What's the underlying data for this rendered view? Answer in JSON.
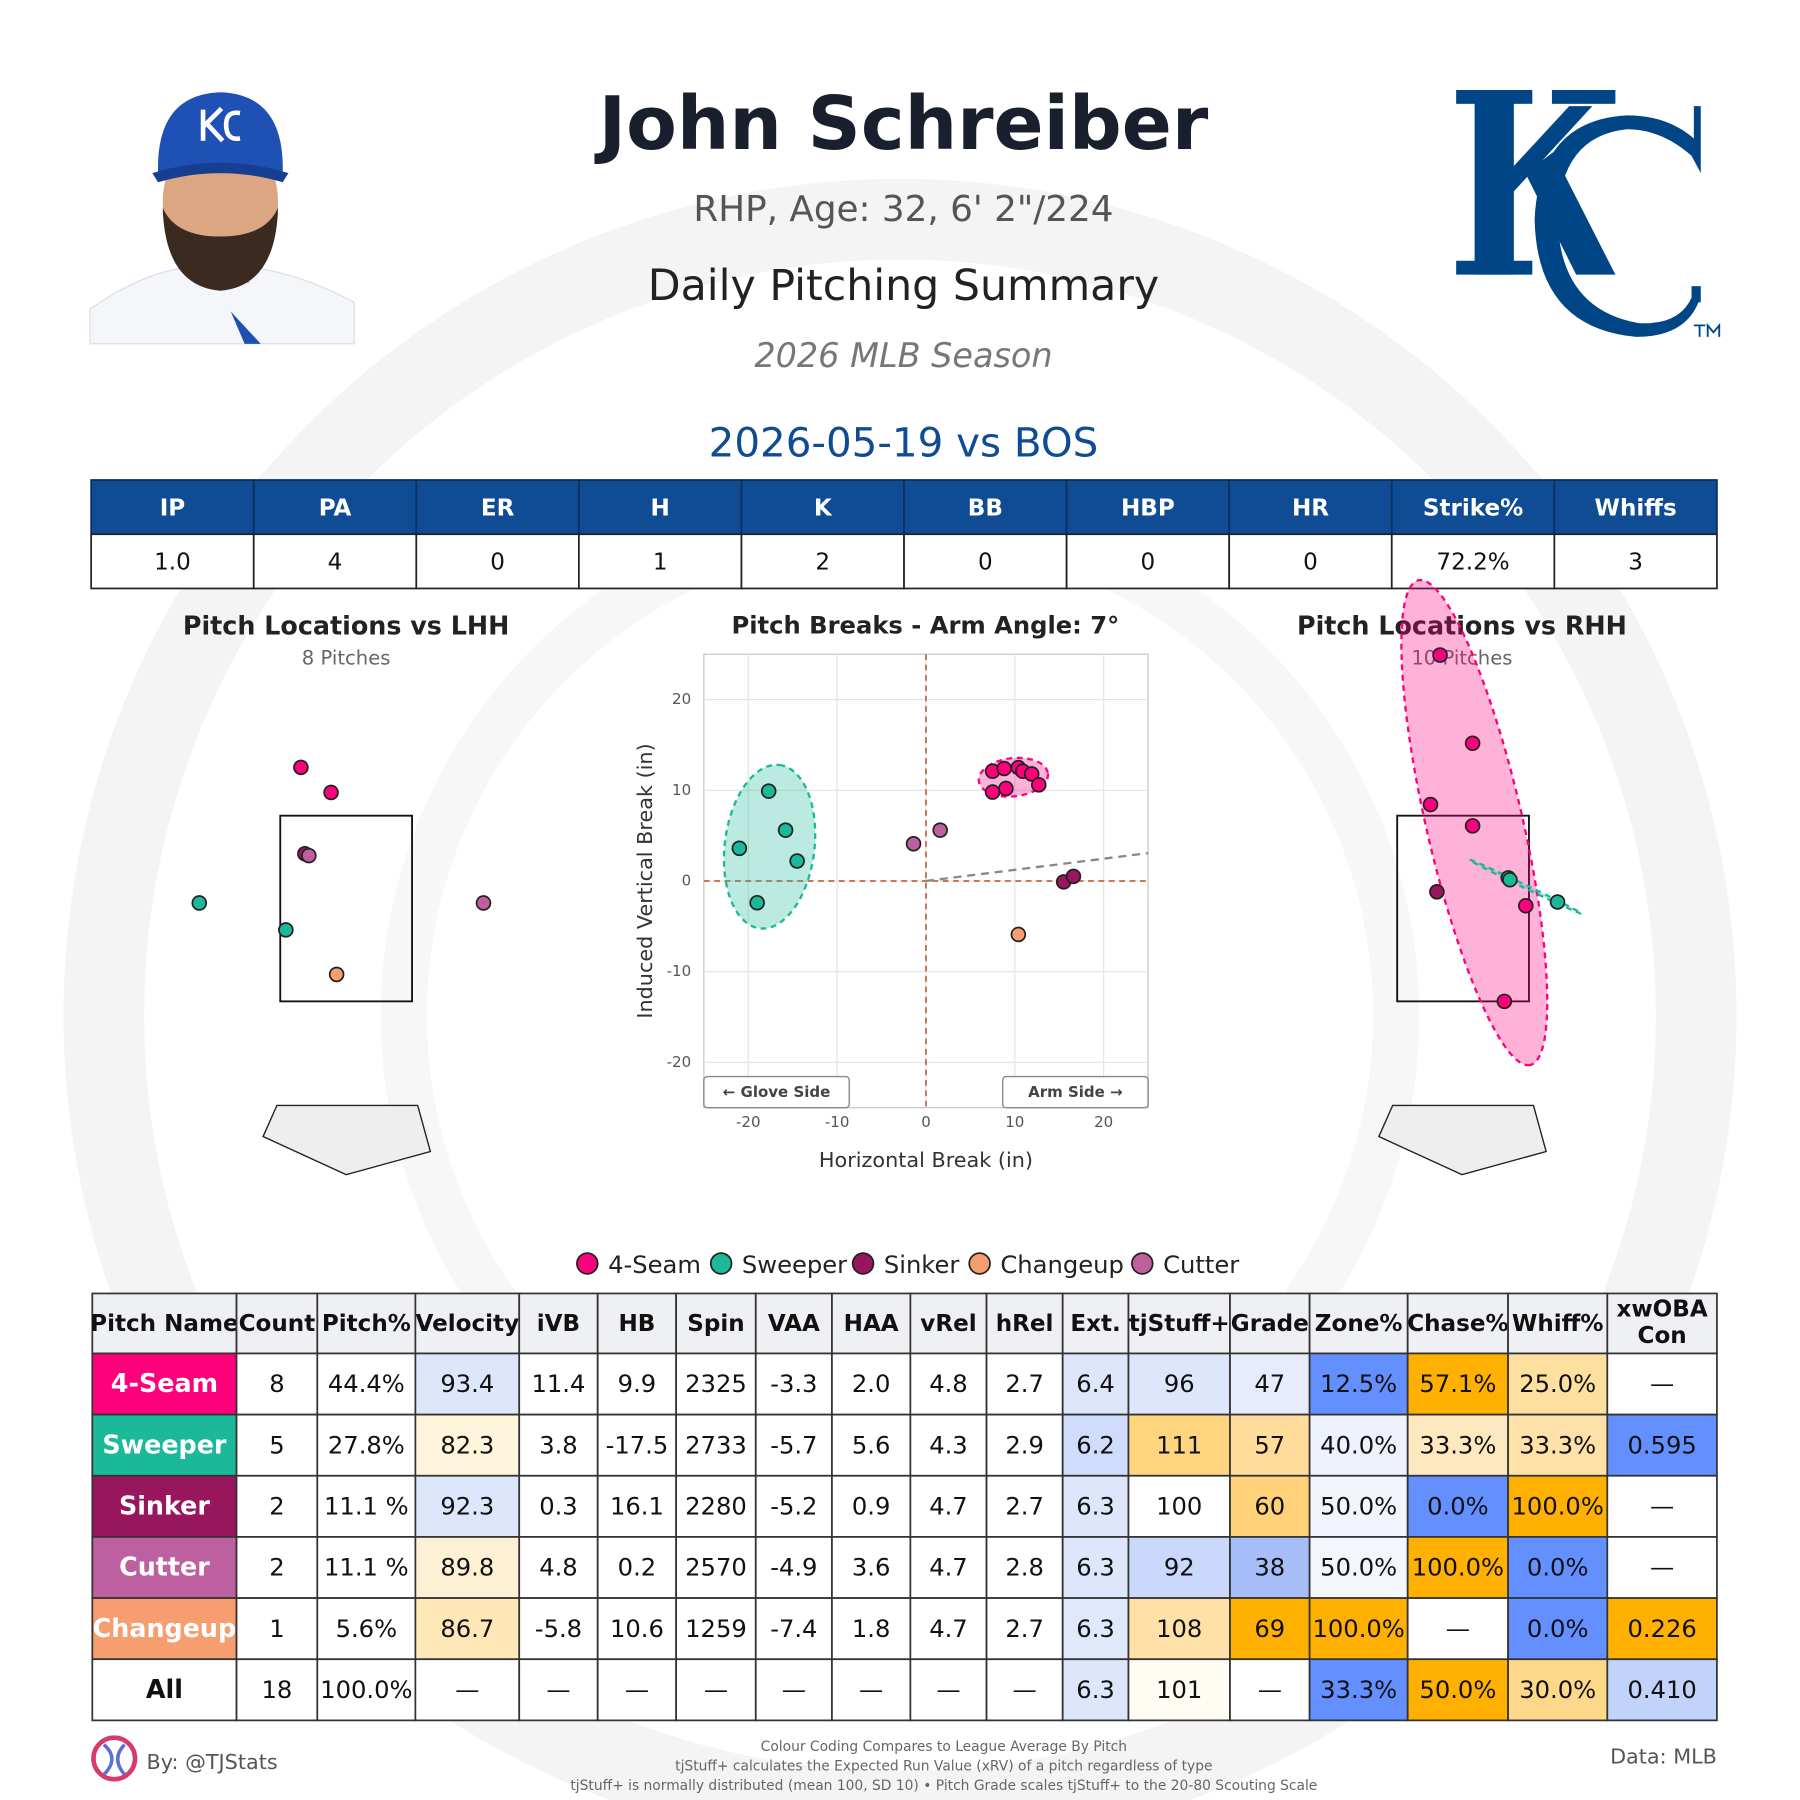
{
  "header": {
    "name": "John Schreiber",
    "bio": "RHP, Age: 32, 6' 2\"/224",
    "title": "Daily Pitching Summary",
    "season": "2026 MLB Season"
  },
  "game": {
    "title": "2026-05-19 vs BOS",
    "columns": [
      "IP",
      "PA",
      "ER",
      "H",
      "K",
      "BB",
      "HBP",
      "HR",
      "Strike%",
      "Whiffs"
    ],
    "values": [
      "1.0",
      "4",
      "0",
      "1",
      "2",
      "0",
      "0",
      "0",
      "72.2%",
      "3"
    ]
  },
  "chart_data": [
    {
      "type": "location",
      "title": "Pitch Locations vs LHH",
      "subtitle": "8 Pitches",
      "xlim": [
        -2.5,
        2.5
      ],
      "ylim": [
        -1,
        5.5
      ],
      "strike_zone": {
        "x": [
          -0.83,
          0.83
        ],
        "z": [
          1.5,
          3.5
        ]
      },
      "series": [
        {
          "name": "4-Seam",
          "color": "#ff007d",
          "x": [
            -0.57,
            -0.19
          ],
          "values": [
            4.02,
            3.75
          ]
        },
        {
          "name": "Sweeper",
          "color": "#1bb999",
          "x": [
            -1.85,
            -0.76
          ],
          "values": [
            2.56,
            2.27
          ]
        },
        {
          "name": "Sinker",
          "color": "#98165d",
          "x": [
            -0.52
          ],
          "values": [
            3.09
          ]
        },
        {
          "name": "Changeup",
          "color": "#f79e70",
          "x": [
            -0.12
          ],
          "values": [
            1.79
          ]
        },
        {
          "name": "Cutter",
          "color": "#be5fa0",
          "x": [
            -0.47,
            1.73
          ],
          "values": [
            3.07,
            2.56
          ]
        }
      ]
    },
    {
      "type": "scatter",
      "title": "Pitch Breaks - Arm Angle: 7°",
      "xlabel": "Horizontal Break (in)",
      "ylabel": "Induced Vertical Break (in)",
      "xlim": [
        -25,
        25
      ],
      "ylim": [
        -25,
        25
      ],
      "xticks": [
        -20,
        -10,
        0,
        10,
        20
      ],
      "yticks": [
        -20,
        -10,
        0,
        10,
        20
      ],
      "grid": true,
      "arm_angle": 7,
      "annotations": [
        "← Glove Side",
        "Arm Side →"
      ],
      "series": [
        {
          "name": "4-Seam",
          "color": "#ff007d",
          "x": [
            7.5,
            8.8,
            10.4,
            10.9,
            11.9,
            12.7,
            9.0,
            7.5
          ],
          "values": [
            12.1,
            12.4,
            12.5,
            12.1,
            11.8,
            10.6,
            10.2,
            9.8
          ]
        },
        {
          "name": "Sweeper",
          "color": "#1bb999",
          "x": [
            -17.7,
            -15.8,
            -21.0,
            -14.5,
            -19.0
          ],
          "values": [
            9.9,
            5.6,
            3.6,
            2.2,
            -2.4
          ]
        },
        {
          "name": "Sinker",
          "color": "#98165d",
          "x": [
            15.5,
            16.6
          ],
          "values": [
            -0.1,
            0.5
          ]
        },
        {
          "name": "Changeup",
          "color": "#f79e70",
          "x": [
            10.4
          ],
          "values": [
            -5.9
          ]
        },
        {
          "name": "Cutter",
          "color": "#be5fa0",
          "x": [
            -1.4,
            1.6
          ],
          "values": [
            4.1,
            5.6
          ]
        }
      ]
    },
    {
      "type": "location",
      "title": "Pitch Locations vs RHH",
      "subtitle": "10 Pitches",
      "xlim": [
        -2.5,
        2.5
      ],
      "ylim": [
        -1,
        5.5
      ],
      "strike_zone": {
        "x": [
          -0.83,
          0.83
        ],
        "z": [
          1.5,
          3.5
        ]
      },
      "series": [
        {
          "name": "4-Seam",
          "color": "#ff007d",
          "x": [
            -0.29,
            0.12,
            -0.41,
            0.12,
            0.79,
            0.52
          ],
          "values": [
            5.23,
            4.28,
            3.62,
            3.39,
            2.53,
            1.5
          ]
        },
        {
          "name": "Sweeper",
          "color": "#1bb999",
          "x": [
            0.57,
            0.59,
            1.19
          ],
          "values": [
            2.83,
            2.81,
            2.57
          ]
        },
        {
          "name": "Sinker",
          "color": "#98165d",
          "x": [
            -0.33
          ],
          "values": [
            2.68
          ]
        }
      ]
    }
  ],
  "pitch_table": {
    "columns": [
      "Pitch Name",
      "Count",
      "Pitch%",
      "Velocity",
      "iVB",
      "HB",
      "Spin",
      "VAA",
      "HAA",
      "vRel",
      "hRel",
      "Ext.",
      "tjStuff+",
      "Grade",
      "Zone%",
      "Chase%",
      "Whiff%",
      "xwOBA Con"
    ],
    "rows": [
      [
        "4-Seam",
        "8",
        "44.4%",
        "93.4",
        "11.4",
        "9.9",
        "2325",
        "-3.3",
        "2.0",
        "4.8",
        "2.7",
        "6.4",
        "96",
        "47",
        "12.5%",
        "57.1%",
        "25.0%",
        "—"
      ],
      [
        "Sweeper",
        "5",
        "27.8%",
        "82.3",
        "3.8",
        "-17.5",
        "2733",
        "-5.7",
        "5.6",
        "4.3",
        "2.9",
        "6.2",
        "111",
        "57",
        "40.0%",
        "33.3%",
        "33.3%",
        "0.595"
      ],
      [
        "Sinker",
        "2",
        "11.1 %",
        "92.3",
        "0.3",
        "16.1",
        "2280",
        "-5.2",
        "0.9",
        "4.7",
        "2.7",
        "6.3",
        "100",
        "60",
        "50.0%",
        "0.0%",
        "100.0%",
        "—"
      ],
      [
        "Cutter",
        "2",
        "11.1 %",
        "89.8",
        "4.8",
        "0.2",
        "2570",
        "-4.9",
        "3.6",
        "4.7",
        "2.8",
        "6.3",
        "92",
        "38",
        "50.0%",
        "100.0%",
        "0.0%",
        "—"
      ],
      [
        "Changeup",
        "1",
        "5.6%",
        "86.7",
        "-5.8",
        "10.6",
        "1259",
        "-7.4",
        "1.8",
        "4.7",
        "2.7",
        "6.3",
        "108",
        "69",
        "100.0%",
        "—",
        "0.0%",
        "0.226"
      ],
      [
        "All",
        "18",
        "100.0%",
        "—",
        "—",
        "—",
        "—",
        "—",
        "—",
        "—",
        "—",
        "6.3",
        "101",
        "—",
        "33.3%",
        "50.0%",
        "30.0%",
        "0.410"
      ]
    ],
    "cell_colors": [
      [
        "#ff007d",
        null,
        null,
        "#dde6fb",
        null,
        null,
        null,
        null,
        null,
        null,
        null,
        "#dde6fb",
        "#dde6fb",
        "#e6ecfb",
        "#648fff",
        "#ffb000",
        "#fde0a0",
        null
      ],
      [
        "#1bb999",
        null,
        null,
        "#fff4dc",
        null,
        null,
        null,
        null,
        null,
        null,
        null,
        "#cfdcfb",
        "#ffd580",
        "#ffdc99",
        "#eef2fc",
        "#fde8c0",
        "#fde1a8",
        "#648fff"
      ],
      [
        "#98165d",
        null,
        null,
        "#dde6fb",
        null,
        null,
        null,
        null,
        null,
        null,
        null,
        "#dde6fb",
        null,
        "#ffd27a",
        "#f2f5fd",
        "#648fff",
        "#ffb000",
        null
      ],
      [
        "#be5fa0",
        null,
        null,
        "#fdf0d5",
        null,
        null,
        null,
        null,
        null,
        null,
        null,
        "#dde6fb",
        "#c9d8fb",
        "#a7bdf7",
        "#f4f6fd",
        "#ffb000",
        "#648fff",
        null
      ],
      [
        "#f79e70",
        null,
        null,
        "#ffe7b8",
        null,
        null,
        null,
        null,
        null,
        null,
        null,
        "#e0e8fb",
        "#ffe1a8",
        "#ffb000",
        "#ffb000",
        null,
        "#648fff",
        "#ffb000"
      ],
      [
        null,
        null,
        null,
        null,
        null,
        null,
        null,
        null,
        null,
        null,
        null,
        "#dde6fb",
        "#fffcf3",
        null,
        "#648fff",
        "#ffb000",
        "#fdd88a",
        "#c1d2fb"
      ]
    ]
  },
  "footer": {
    "author": "By: @TJStats",
    "notes": [
      "Colour Coding Compares to League Average By Pitch",
      "tjStuff+ calculates the Expected Run Value (xRV) of a pitch regardless of type",
      "tjStuff+ is normally distributed (mean 100, SD 10) • Pitch Grade scales tjStuff+ to the 20-80 Scouting Scale"
    ],
    "source": "Data: MLB"
  }
}
